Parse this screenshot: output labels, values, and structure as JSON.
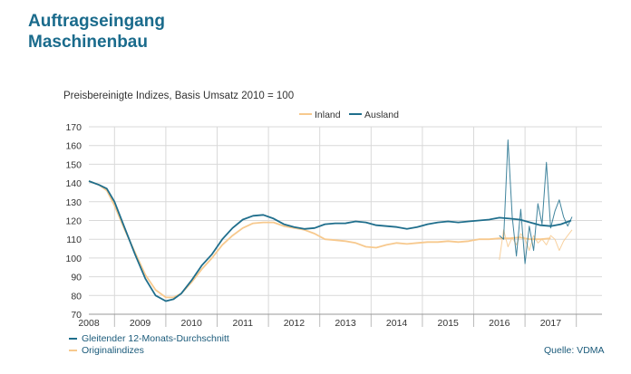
{
  "header": {
    "title_line1": "Auftragseingang",
    "title_line2": "Maschinenbau"
  },
  "subtitle": "Preisbereinigte Indizes, Basis Umsatz 2010 = 100",
  "footer": {
    "legend_avg": "Gleitender 12-Monats-Durchschnitt",
    "legend_orig": "Originalindizes",
    "source": "Quelle: VDMA"
  },
  "colors": {
    "inland": "#f7c98e",
    "ausland": "#1f6e8c",
    "grid": "#d9d9d9",
    "axis": "#333333"
  },
  "chart_data": {
    "type": "line",
    "ylim": [
      70,
      170
    ],
    "yticks": [
      70,
      80,
      90,
      100,
      110,
      120,
      130,
      140,
      150,
      160,
      170
    ],
    "xlim": [
      2007.5,
      2017.5
    ],
    "xtick_labels": [
      "2008",
      "2009",
      "2010",
      "2011",
      "2012",
      "2013",
      "2014",
      "2015",
      "2016",
      "2017"
    ],
    "legend": [
      "Inland",
      "Ausland"
    ],
    "legend_position": "top-right",
    "series": [
      {
        "name": "Inland",
        "x": [
          2007.5,
          2007.7,
          2007.85,
          2008.0,
          2008.2,
          2008.4,
          2008.6,
          2008.8,
          2009.0,
          2009.15,
          2009.3,
          2009.5,
          2009.7,
          2009.9,
          2010.1,
          2010.3,
          2010.5,
          2010.7,
          2010.9,
          2011.1,
          2011.3,
          2011.5,
          2011.7,
          2011.9,
          2012.1,
          2012.3,
          2012.5,
          2012.7,
          2012.9,
          2013.1,
          2013.3,
          2013.5,
          2013.7,
          2013.9,
          2014.1,
          2014.3,
          2014.5,
          2014.7,
          2014.9,
          2015.1,
          2015.3,
          2015.5,
          2015.7,
          2015.9,
          2016.1,
          2016.3,
          2016.5
        ],
        "values": [
          141,
          139,
          136,
          128,
          115,
          103,
          91,
          83,
          79,
          79,
          81,
          87,
          94,
          100,
          107,
          112,
          116,
          118.5,
          119,
          119,
          117,
          116,
          115,
          113,
          110,
          109.5,
          109,
          108,
          106,
          105.5,
          107,
          108,
          107.5,
          108,
          108.5,
          108.5,
          109,
          108.5,
          109,
          110,
          110,
          110.5,
          110.5,
          111,
          110,
          110,
          110.5
        ]
      },
      {
        "name": "Ausland",
        "x": [
          2007.5,
          2007.7,
          2007.85,
          2008.0,
          2008.2,
          2008.4,
          2008.6,
          2008.8,
          2009.0,
          2009.15,
          2009.3,
          2009.5,
          2009.7,
          2009.9,
          2010.1,
          2010.3,
          2010.5,
          2010.7,
          2010.9,
          2011.1,
          2011.3,
          2011.5,
          2011.7,
          2011.9,
          2012.1,
          2012.3,
          2012.5,
          2012.7,
          2012.9,
          2013.1,
          2013.3,
          2013.5,
          2013.7,
          2013.9,
          2014.1,
          2014.3,
          2014.5,
          2014.7,
          2014.9,
          2015.1,
          2015.3,
          2015.5,
          2015.7,
          2015.9,
          2016.1,
          2016.3,
          2016.5,
          2016.7,
          2016.9
        ],
        "values": [
          141,
          139,
          137,
          130,
          116,
          102,
          89,
          80,
          77,
          78,
          81,
          88,
          96,
          102,
          110,
          116,
          120.5,
          122.5,
          123,
          121,
          118,
          116.5,
          115.5,
          116,
          118,
          118.5,
          118.5,
          119.5,
          119,
          117.5,
          117,
          116.5,
          115.5,
          116.5,
          118,
          119,
          119.5,
          119,
          119.5,
          120,
          120.5,
          121.5,
          121,
          120.5,
          119,
          117.5,
          117,
          118,
          120
        ]
      },
      {
        "name": "Inland",
        "x": [
          2015.5,
          2015.583,
          2015.667,
          2015.75,
          2015.833,
          2015.917,
          2016.0,
          2016.083,
          2016.167,
          2016.25,
          2016.333,
          2016.417,
          2016.5,
          2016.583,
          2016.667,
          2016.75,
          2016.833,
          2016.917
        ],
        "values": [
          99,
          115,
          106,
          111,
          107,
          113,
          110,
          104,
          112,
          108,
          110,
          107,
          112,
          110,
          104,
          109,
          112,
          115
        ]
      },
      {
        "name": "Ausland",
        "x": [
          2015.5,
          2015.583,
          2015.667,
          2015.75,
          2015.833,
          2015.917,
          2016.0,
          2016.083,
          2016.167,
          2016.25,
          2016.333,
          2016.417,
          2016.5,
          2016.583,
          2016.667,
          2016.75,
          2016.833,
          2016.917
        ],
        "values": [
          112,
          110,
          163,
          122,
          101,
          126,
          97,
          117,
          104,
          129,
          118,
          151,
          116,
          125,
          131,
          122,
          117,
          122
        ]
      }
    ]
  }
}
